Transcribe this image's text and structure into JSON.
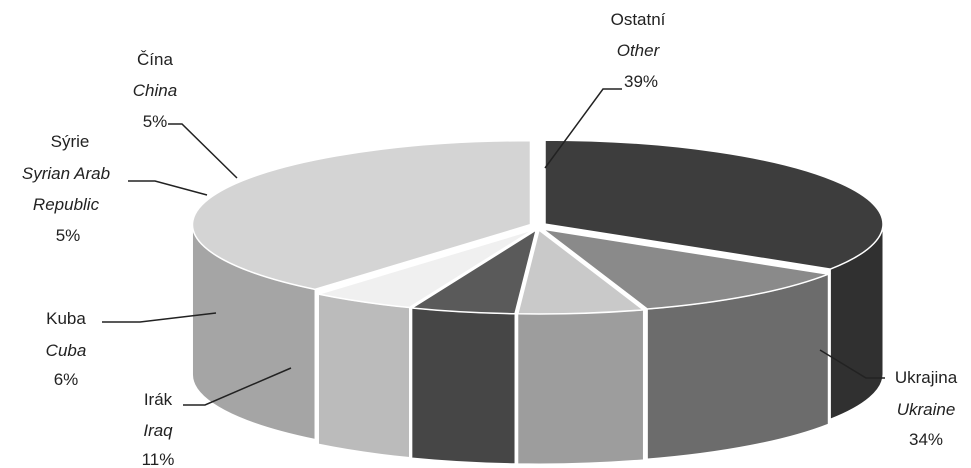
{
  "chart_data": {
    "type": "pie",
    "style": "3d-exploded-oval",
    "slices": [
      {
        "key": "ukraine",
        "label_cz": "Ukrajina",
        "label_en": "Ukraine",
        "percent_label": "34%",
        "value": 34,
        "color": "#3d3d3d"
      },
      {
        "key": "iraq",
        "label_cz": "Irák",
        "label_en": "Iraq",
        "percent_label": "11%",
        "value": 11,
        "color": "#8a8a8a"
      },
      {
        "key": "cuba",
        "label_cz": "Kuba",
        "label_en": "Cuba",
        "percent_label": "6%",
        "value": 6,
        "color": "#c9c9c9"
      },
      {
        "key": "syria",
        "label_cz": "Sýrie",
        "label_en_lines": [
          "Syrian Arab",
          "Republic"
        ],
        "percent_label": "5%",
        "value": 5,
        "color": "#5a5a5a"
      },
      {
        "key": "china",
        "label_cz": "Čína",
        "label_en": "China",
        "percent_label": "5%",
        "value": 5,
        "color": "#f0f0f0"
      },
      {
        "key": "other",
        "label_cz": "Ostatní",
        "label_en": "Other",
        "percent_label": "39%",
        "value": 39,
        "color": "#d4d4d4"
      }
    ]
  }
}
